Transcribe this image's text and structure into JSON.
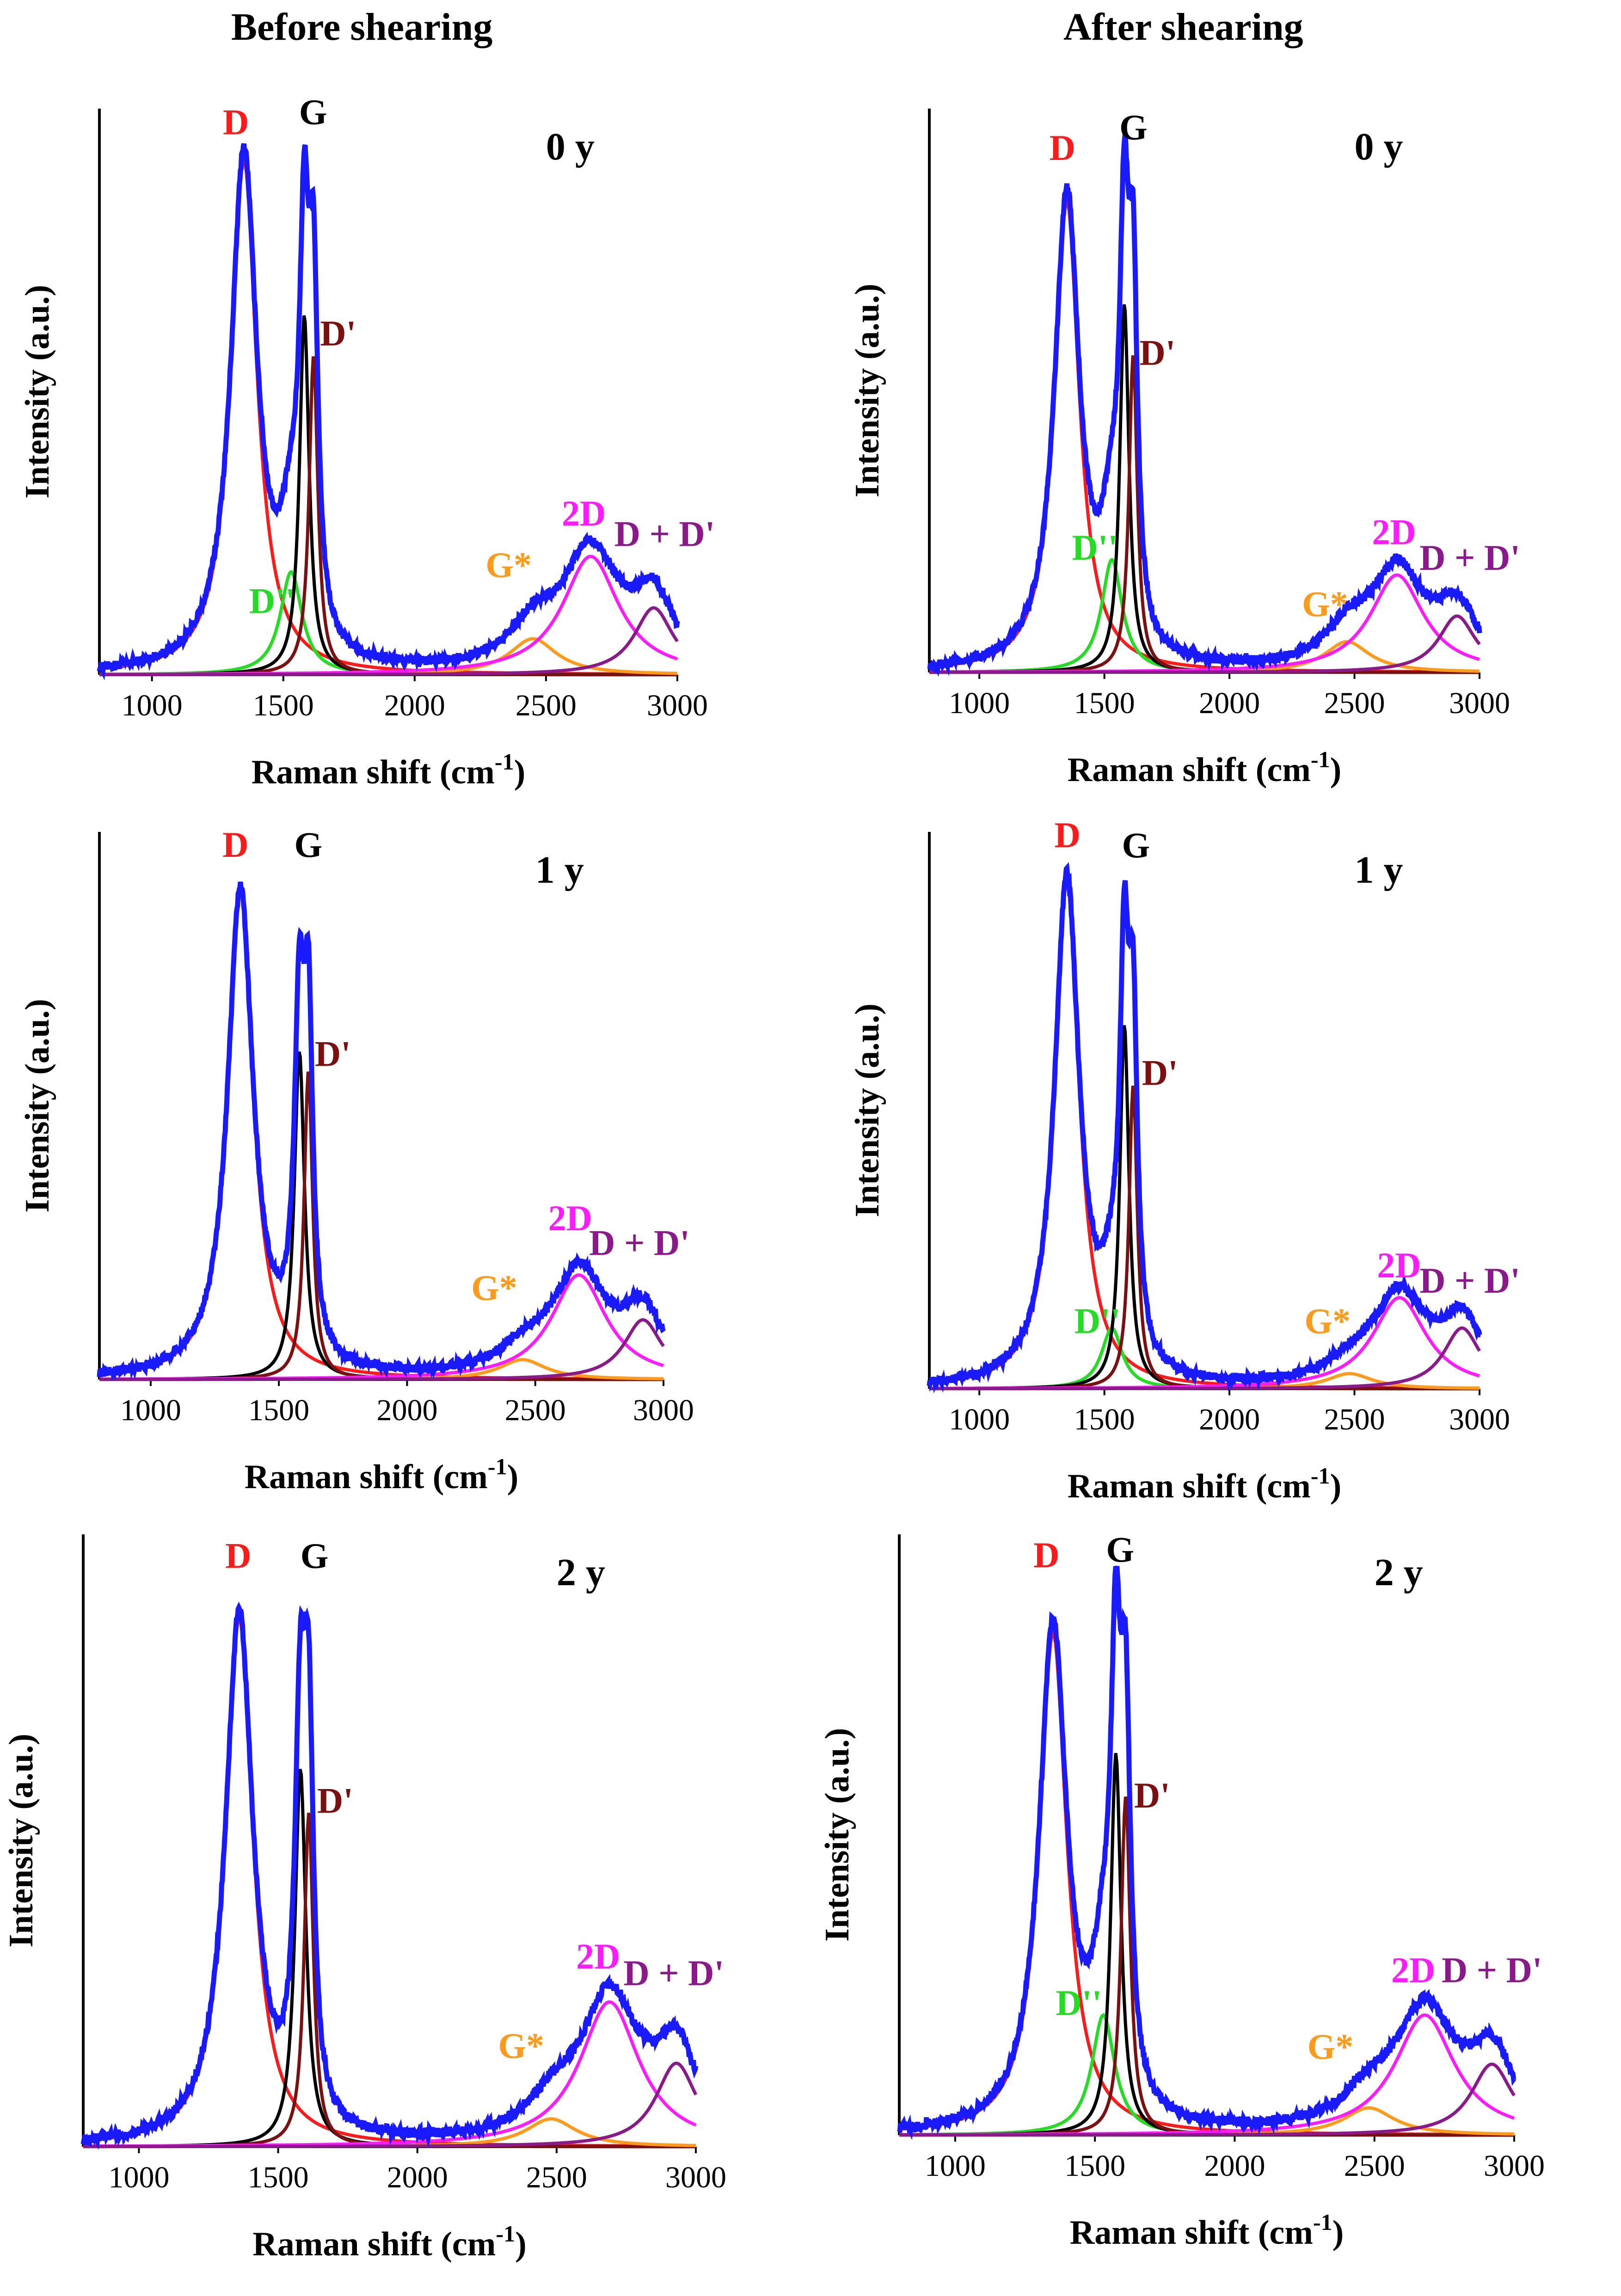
{
  "column_titles": [
    "Before shearing",
    "After shearing"
  ],
  "colors": {
    "measured": "#1a1aff",
    "D": "#ff1a1a",
    "G": "#000000",
    "D_prime": "#7a1010",
    "D_double_prime": "#22dd22",
    "G_star": "#ff9a1a",
    "2D": "#ff1aff",
    "D_plus_D_prime": "#8a1a8a"
  },
  "chart_data": [
    {
      "id": "before-0y",
      "type": "line",
      "condition": "Before shearing",
      "age_label": "0 y",
      "xlabel": "Raman shift (cm",
      "xlabel_sup": "-1",
      "xlabel_close": ")",
      "ylabel": "Intensity (a.u.)",
      "xlim": [
        800,
        3000
      ],
      "xticks": [
        1000,
        1500,
        2000,
        2500,
        3000
      ],
      "ylim": [
        0,
        1.1
      ],
      "components": [
        {
          "name": "D",
          "center": 1350,
          "amp": 1.0,
          "width": 60
        },
        {
          "name": "D''",
          "center": 1530,
          "amp": 0.2,
          "width": 50
        },
        {
          "name": "G",
          "center": 1580,
          "amp": 0.7,
          "width": 22
        },
        {
          "name": "D'",
          "center": 1615,
          "amp": 0.62,
          "width": 20
        },
        {
          "name": "G*",
          "center": 2450,
          "amp": 0.07,
          "width": 110
        },
        {
          "name": "2D",
          "center": 2670,
          "amp": 0.23,
          "width": 130
        },
        {
          "name": "D+D'",
          "center": 2910,
          "amp": 0.13,
          "width": 90
        }
      ],
      "labels": [
        {
          "text": "D",
          "color_key": "D",
          "x": 1270,
          "y": 1.05
        },
        {
          "text": "G",
          "color_key": "G",
          "x": 1560,
          "y": 1.07
        },
        {
          "text": "D'",
          "color_key": "D_prime",
          "x": 1640,
          "y": 0.64
        },
        {
          "text": "D''",
          "color_key": "D_double_prime",
          "x": 1370,
          "y": 0.12
        },
        {
          "text": "G*",
          "color_key": "G_star",
          "x": 2270,
          "y": 0.19
        },
        {
          "text": "2D",
          "color_key": "2D",
          "x": 2560,
          "y": 0.29
        },
        {
          "text": "D + D'",
          "color_key": "D_plus_D_prime",
          "x": 2760,
          "y": 0.25
        }
      ]
    },
    {
      "id": "after-0y",
      "type": "line",
      "condition": "After shearing",
      "age_label": "0 y",
      "xlabel": "Raman shift (cm",
      "xlabel_sup": "-1",
      "xlabel_close": ")",
      "ylabel": "Intensity (a.u.)",
      "xlim": [
        800,
        3000
      ],
      "xticks": [
        1000,
        1500,
        2000,
        2500,
        3000
      ],
      "ylim": [
        0,
        1.1
      ],
      "components": [
        {
          "name": "D",
          "center": 1350,
          "amp": 0.92,
          "width": 60
        },
        {
          "name": "D''",
          "center": 1530,
          "amp": 0.22,
          "width": 50
        },
        {
          "name": "G",
          "center": 1580,
          "amp": 0.72,
          "width": 22
        },
        {
          "name": "D'",
          "center": 1615,
          "amp": 0.62,
          "width": 20
        },
        {
          "name": "G*",
          "center": 2470,
          "amp": 0.06,
          "width": 110
        },
        {
          "name": "2D",
          "center": 2670,
          "amp": 0.19,
          "width": 130
        },
        {
          "name": "D+D'",
          "center": 2910,
          "amp": 0.11,
          "width": 90
        }
      ],
      "labels": [
        {
          "text": "D",
          "color_key": "D",
          "x": 1280,
          "y": 1.0
        },
        {
          "text": "G",
          "color_key": "G",
          "x": 1560,
          "y": 1.04
        },
        {
          "text": "D'",
          "color_key": "D_prime",
          "x": 1640,
          "y": 0.6
        },
        {
          "text": "D''",
          "color_key": "D_double_prime",
          "x": 1370,
          "y": 0.22
        },
        {
          "text": "G*",
          "color_key": "G_star",
          "x": 2290,
          "y": 0.11
        },
        {
          "text": "2D",
          "color_key": "2D",
          "x": 2570,
          "y": 0.25
        },
        {
          "text": "D + D'",
          "color_key": "D_plus_D_prime",
          "x": 2760,
          "y": 0.2
        }
      ]
    },
    {
      "id": "before-1y",
      "type": "line",
      "condition": "Before shearing",
      "age_label": "1 y",
      "xlabel": "Raman shift (cm",
      "xlabel_sup": "-1",
      "xlabel_close": ")",
      "ylabel": "Intensity (a.u.)",
      "xlim": [
        800,
        3000
      ],
      "xticks": [
        1000,
        1500,
        2000,
        2500,
        3000
      ],
      "ylim": [
        0,
        1.1
      ],
      "components": [
        {
          "name": "D",
          "center": 1350,
          "amp": 0.98,
          "width": 60
        },
        {
          "name": "G",
          "center": 1580,
          "amp": 0.66,
          "width": 24
        },
        {
          "name": "D'",
          "center": 1615,
          "amp": 0.62,
          "width": 20
        },
        {
          "name": "G*",
          "center": 2450,
          "amp": 0.04,
          "width": 110
        },
        {
          "name": "2D",
          "center": 2670,
          "amp": 0.21,
          "width": 130
        },
        {
          "name": "D+D'",
          "center": 2920,
          "amp": 0.12,
          "width": 90
        }
      ],
      "labels": [
        {
          "text": "D",
          "color_key": "D",
          "x": 1280,
          "y": 1.05
        },
        {
          "text": "G",
          "color_key": "G",
          "x": 1560,
          "y": 1.05
        },
        {
          "text": "D'",
          "color_key": "D_prime",
          "x": 1640,
          "y": 0.63
        },
        {
          "text": "G*",
          "color_key": "G_star",
          "x": 2250,
          "y": 0.16
        },
        {
          "text": "2D",
          "color_key": "2D",
          "x": 2550,
          "y": 0.3
        },
        {
          "text": "D + D'",
          "color_key": "D_plus_D_prime",
          "x": 2710,
          "y": 0.25
        }
      ]
    },
    {
      "id": "after-1y",
      "type": "line",
      "condition": "After shearing",
      "age_label": "1 y",
      "xlabel": "Raman shift (cm",
      "xlabel_sup": "-1",
      "xlabel_close": ")",
      "ylabel": "Intensity (a.u.)",
      "xlim": [
        800,
        3000
      ],
      "xticks": [
        1000,
        1500,
        2000,
        2500,
        3000
      ],
      "ylim": [
        0,
        1.1
      ],
      "components": [
        {
          "name": "D",
          "center": 1350,
          "amp": 1.0,
          "width": 60
        },
        {
          "name": "D''",
          "center": 1530,
          "amp": 0.12,
          "width": 50
        },
        {
          "name": "G",
          "center": 1580,
          "amp": 0.72,
          "width": 22
        },
        {
          "name": "D'",
          "center": 1615,
          "amp": 0.6,
          "width": 20
        },
        {
          "name": "G*",
          "center": 2480,
          "amp": 0.03,
          "width": 110
        },
        {
          "name": "2D",
          "center": 2680,
          "amp": 0.18,
          "width": 130
        },
        {
          "name": "D+D'",
          "center": 2930,
          "amp": 0.12,
          "width": 90
        }
      ],
      "labels": [
        {
          "text": "D",
          "color_key": "D",
          "x": 1300,
          "y": 1.07
        },
        {
          "text": "G",
          "color_key": "G",
          "x": 1570,
          "y": 1.05
        },
        {
          "text": "D'",
          "color_key": "D_prime",
          "x": 1650,
          "y": 0.6
        },
        {
          "text": "D''",
          "color_key": "D_double_prime",
          "x": 1380,
          "y": 0.11
        },
        {
          "text": "G*",
          "color_key": "G_star",
          "x": 2300,
          "y": 0.11
        },
        {
          "text": "2D",
          "color_key": "2D",
          "x": 2590,
          "y": 0.22
        },
        {
          "text": "D + D'",
          "color_key": "D_plus_D_prime",
          "x": 2760,
          "y": 0.19
        }
      ]
    },
    {
      "id": "before-2y",
      "type": "line",
      "condition": "Before shearing",
      "age_label": "2 y",
      "xlabel": "Raman shift (cm",
      "xlabel_sup": "-1",
      "xlabel_close": ")",
      "ylabel": "Intensity (a.u.)",
      "xlim": [
        800,
        3000
      ],
      "xticks": [
        1000,
        1500,
        2000,
        2500,
        3000
      ],
      "ylim": [
        0,
        1.1
      ],
      "components": [
        {
          "name": "D",
          "center": 1360,
          "amp": 0.95,
          "width": 60
        },
        {
          "name": "G",
          "center": 1580,
          "amp": 0.68,
          "width": 24
        },
        {
          "name": "D'",
          "center": 1610,
          "amp": 0.6,
          "width": 20
        },
        {
          "name": "G*",
          "center": 2480,
          "amp": 0.05,
          "width": 110
        },
        {
          "name": "2D",
          "center": 2690,
          "amp": 0.26,
          "width": 130
        },
        {
          "name": "D+D'",
          "center": 2930,
          "amp": 0.15,
          "width": 90
        }
      ],
      "labels": [
        {
          "text": "D",
          "color_key": "D",
          "x": 1310,
          "y": 1.04
        },
        {
          "text": "G",
          "color_key": "G",
          "x": 1580,
          "y": 1.04
        },
        {
          "text": "D'",
          "color_key": "D_prime",
          "x": 1640,
          "y": 0.6
        },
        {
          "text": "G*",
          "color_key": "G_star",
          "x": 2290,
          "y": 0.16
        },
        {
          "text": "2D",
          "color_key": "2D",
          "x": 2570,
          "y": 0.32
        },
        {
          "text": "D + D'",
          "color_key": "D_plus_D_prime",
          "x": 2740,
          "y": 0.29
        }
      ]
    },
    {
      "id": "after-2y",
      "type": "line",
      "condition": "After shearing",
      "age_label": "2 y",
      "xlabel": "Raman shift (cm",
      "xlabel_sup": "-1",
      "xlabel_close": ")",
      "ylabel": "Intensity (a.u.)",
      "xlim": [
        800,
        3000
      ],
      "xticks": [
        1000,
        1500,
        2000,
        2500,
        3000
      ],
      "ylim": [
        0,
        1.1
      ],
      "components": [
        {
          "name": "D",
          "center": 1350,
          "amp": 0.92,
          "width": 60
        },
        {
          "name": "D''",
          "center": 1530,
          "amp": 0.22,
          "width": 50
        },
        {
          "name": "G",
          "center": 1575,
          "amp": 0.7,
          "width": 22
        },
        {
          "name": "D'",
          "center": 1610,
          "amp": 0.62,
          "width": 20
        },
        {
          "name": "G*",
          "center": 2480,
          "amp": 0.05,
          "width": 110
        },
        {
          "name": "2D",
          "center": 2680,
          "amp": 0.22,
          "width": 130
        },
        {
          "name": "D+D'",
          "center": 2920,
          "amp": 0.13,
          "width": 90
        }
      ],
      "labels": [
        {
          "text": "D",
          "color_key": "D",
          "x": 1280,
          "y": 1.04
        },
        {
          "text": "G",
          "color_key": "G",
          "x": 1540,
          "y": 1.05
        },
        {
          "text": "D'",
          "color_key": "D_prime",
          "x": 1640,
          "y": 0.6
        },
        {
          "text": "D''",
          "color_key": "D_double_prime",
          "x": 1360,
          "y": 0.22
        },
        {
          "text": "G*",
          "color_key": "G_star",
          "x": 2260,
          "y": 0.14
        },
        {
          "text": "2D",
          "color_key": "2D",
          "x": 2560,
          "y": 0.28
        },
        {
          "text": "D + D'",
          "color_key": "D_plus_D_prime",
          "x": 2740,
          "y": 0.28
        }
      ]
    }
  ]
}
